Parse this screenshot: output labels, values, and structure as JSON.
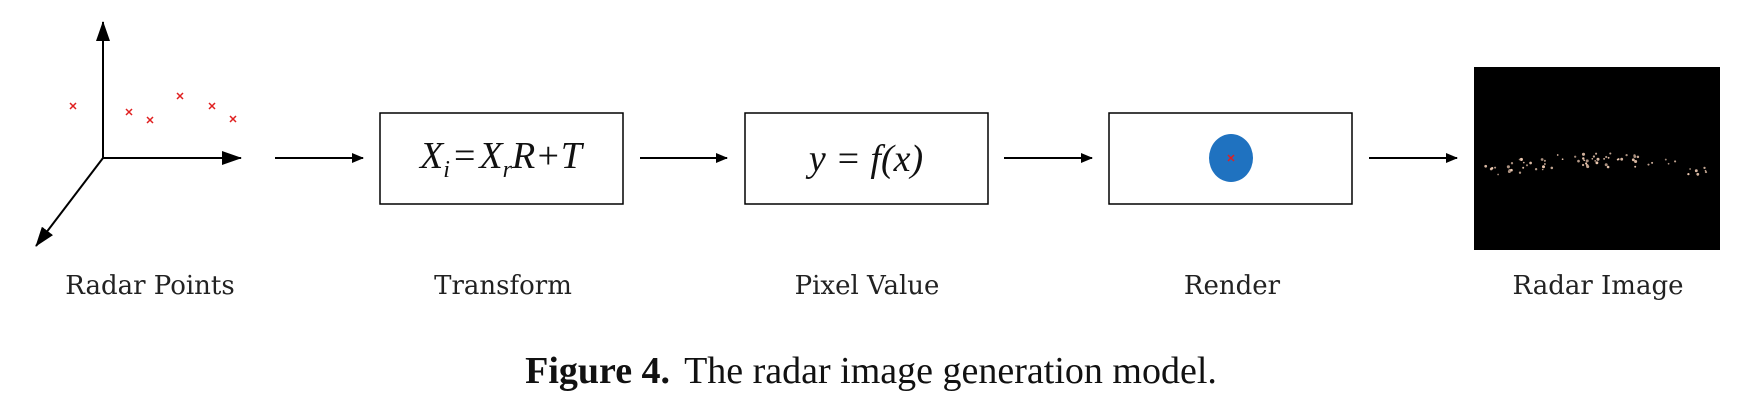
{
  "stages": [
    {
      "label": "Radar Points"
    },
    {
      "label": "Transform",
      "formula": {
        "lhs_var": "X",
        "lhs_sub": "i",
        "eq": "=",
        "rhs_var": "X",
        "rhs_sub": "r",
        "rhs_rest": "R+T"
      }
    },
    {
      "label": "Pixel Value",
      "formula": {
        "text": "y = f(x)"
      }
    },
    {
      "label": "Render"
    },
    {
      "label": "Radar Image"
    }
  ],
  "caption": {
    "bold": "Figure 4.",
    "text": "The radar image generation model."
  },
  "colors": {
    "point_marker": "#e02020",
    "render_blob": "#1f72c0",
    "image_bg": "#000000",
    "box_stroke": "#000000"
  }
}
